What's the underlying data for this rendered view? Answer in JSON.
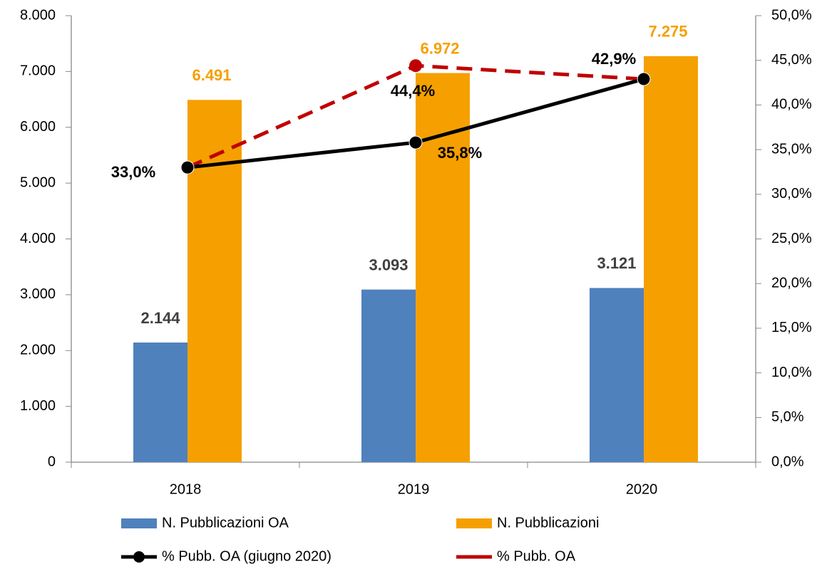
{
  "chart_data": {
    "type": "bar",
    "categories": [
      "2018",
      "2019",
      "2020"
    ],
    "series": [
      {
        "name": "N. Pubblicazioni OA",
        "color": "#4f81bd",
        "values": [
          2144,
          3093,
          3121
        ],
        "value_labels": [
          "2.144",
          "3.093",
          "3.121"
        ],
        "label_color": "#404040"
      },
      {
        "name": "N. Pubblicazioni",
        "color": "#f5a000",
        "values": [
          6491,
          6972,
          7275
        ],
        "value_labels": [
          "6.491",
          "6.972",
          "7.275"
        ],
        "label_color": "#f5a000"
      },
      {
        "name": "% Pubb. OA (giugno 2020)",
        "type": "line",
        "axis": "y2",
        "color": "#000000",
        "values": [
          33.0,
          35.8,
          42.9
        ],
        "value_labels": [
          "33,0%",
          "35,8%",
          "42,9%"
        ],
        "label_color": "#000000"
      },
      {
        "name": "% Pubb. OA",
        "type": "line",
        "axis": "y2",
        "dashed": true,
        "color": "#c00000",
        "values": [
          33.0,
          44.4,
          42.9
        ],
        "value_labels": [
          null,
          "44,4%",
          null
        ],
        "label_color": "#000000"
      }
    ],
    "ylim": [
      0,
      8000
    ],
    "yticks": [
      0,
      {
        "value": 1000,
        "label": "1.000"
      },
      {
        "value": 2000,
        "label": "2.000"
      },
      {
        "value": 3000,
        "label": "3.000"
      },
      {
        "value": 4000,
        "label": "4.000"
      },
      {
        "value": 5000,
        "label": "5.000"
      },
      {
        "value": 6000,
        "label": "6.000"
      },
      {
        "value": 7000,
        "label": "7.000"
      },
      {
        "value": 8000,
        "label": "8.000"
      }
    ],
    "y2lim": [
      0,
      50
    ],
    "y2ticks": [
      {
        "value": 0,
        "label": "0,0%"
      },
      {
        "value": 5,
        "label": "5,0%"
      },
      {
        "value": 10,
        "label": "10,0%"
      },
      {
        "value": 15,
        "label": "15,0%"
      },
      {
        "value": 20,
        "label": "20,0%"
      },
      {
        "value": 25,
        "label": "25,0%"
      },
      {
        "value": 30,
        "label": "30,0%"
      },
      {
        "value": 35,
        "label": "35,0%"
      },
      {
        "value": 40,
        "label": "40,0%"
      },
      {
        "value": 45,
        "label": "45,0%"
      },
      {
        "value": 50,
        "label": "50,0%"
      }
    ],
    "grid": false
  }
}
